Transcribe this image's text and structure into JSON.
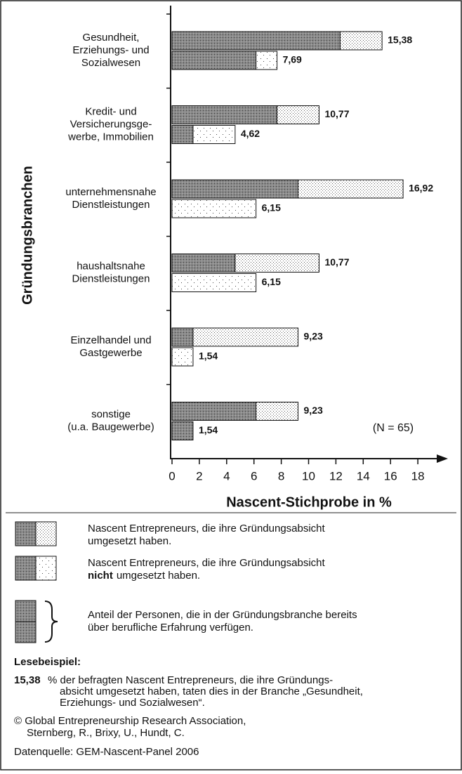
{
  "chart_data": {
    "type": "bar",
    "orientation": "horizontal",
    "ylabel": "Gründungsbranchen",
    "xlabel": "Nascent-Stichprobe in %",
    "annotation": "(N = 65)",
    "categories": [
      [
        "Gesundheit,",
        "Erziehungs- und",
        "Sozialwesen"
      ],
      [
        "Kredit- und",
        "Versicherungsge-",
        "werbe, Immobilien"
      ],
      [
        "unternehmensnahe",
        "Dienstleistungen"
      ],
      [
        "haushaltsnahe",
        "Dienstleistungen"
      ],
      [
        "Einzelhandel und",
        "Gastgewerbe"
      ],
      [
        "sonstige",
        "(u.a. Baugewerbe)"
      ]
    ],
    "series": [
      {
        "values": [
          15.38,
          10.77,
          16.92,
          10.77,
          9.23,
          9.23
        ],
        "value_labels": [
          "15,38",
          "10,77",
          "16,92",
          "10,77",
          "9,23",
          "9,23"
        ],
        "experienced": [
          12.31,
          7.69,
          9.23,
          4.62,
          1.54,
          6.15
        ]
      },
      {
        "values": [
          7.69,
          4.62,
          6.15,
          6.15,
          1.54,
          1.54
        ],
        "value_labels": [
          "7,69",
          "4,62",
          "6,15",
          "6,15",
          "1,54",
          "1,54"
        ],
        "experienced": [
          6.15,
          1.54,
          0,
          0,
          0,
          1.54
        ]
      }
    ],
    "xlim": [
      0,
      20
    ],
    "xticks": [
      0,
      2,
      4,
      6,
      8,
      10,
      12,
      14,
      16,
      18
    ]
  },
  "legend": {
    "items": [
      {
        "lines": [
          "Nascent Entrepreneurs, die ihre Gründungsabsicht",
          "umgesetzt haben."
        ]
      },
      {
        "lines": [
          "Nascent Entrepreneurs, die ihre Gründungsabsicht"
        ],
        "bold": "nicht",
        "rest": "umgesetzt haben."
      },
      {
        "lines": [
          "Anteil der Personen, die in der Gründungsbranche bereits",
          "über berufliche Erfahrung verfügen."
        ]
      }
    ]
  },
  "reading_example": {
    "title": "Lesebeispiel:",
    "value": "15,38",
    "lines": [
      "% der befragten Nascent Entrepreneurs, die ihre Gründungs-",
      "absicht umgesetzt haben, taten dies in der Branche „Gesundheit,",
      "Erziehungs- und Sozialwesen“."
    ]
  },
  "copyright": [
    "© Global Entrepreneurship Research Association,",
    "Sternberg, R., Brixy, U., Hundt, C."
  ],
  "source": "Datenquelle: GEM-Nascent-Panel 2006"
}
